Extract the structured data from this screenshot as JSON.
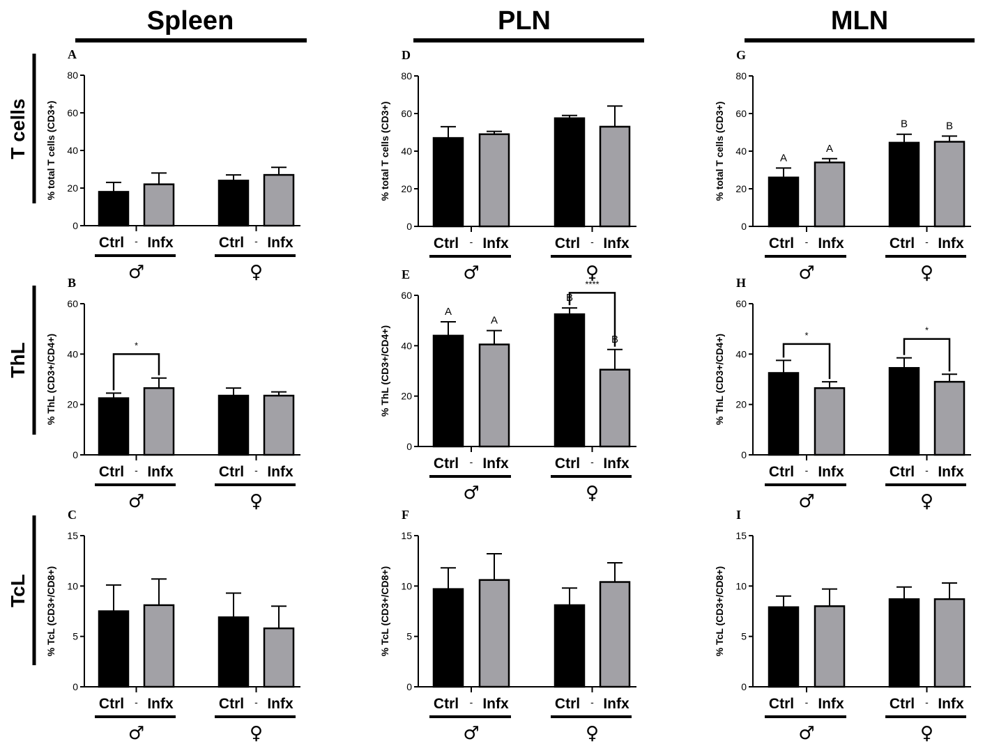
{
  "figure": {
    "column_titles": [
      "Spleen",
      "PLN",
      "MLN"
    ],
    "row_titles": [
      "T cells",
      "ThL",
      "TcL"
    ],
    "colors": {
      "ctrl": "#000000",
      "infx": "#a2a1a6"
    }
  },
  "chart_data": [
    {
      "panel": "A",
      "type": "bar",
      "ylabel": "% total T cells (CD3+)",
      "ylim": [
        0,
        80
      ],
      "yticks": [
        0,
        20,
        40,
        60,
        80
      ],
      "categories": [
        "Ctrl",
        "Infx",
        "Ctrl",
        "Infx"
      ],
      "sex_labels": [
        "♂",
        "♀"
      ],
      "values": [
        18,
        22,
        24,
        27
      ],
      "errors": [
        5,
        6,
        3,
        4
      ],
      "annotations": [],
      "significance": []
    },
    {
      "panel": "B",
      "type": "bar",
      "ylabel": "% ThL (CD3+/CD4+)",
      "ylim": [
        0,
        60
      ],
      "yticks": [
        0,
        20,
        40,
        60
      ],
      "categories": [
        "Ctrl",
        "Infx",
        "Ctrl",
        "Infx"
      ],
      "sex_labels": [
        "♂",
        "♀"
      ],
      "values": [
        22.5,
        26.5,
        23.5,
        23.5
      ],
      "errors": [
        2,
        4,
        3,
        1.5
      ],
      "annotations": [],
      "significance": [
        {
          "from": 0,
          "to": 1,
          "label": "*",
          "y": 40
        }
      ]
    },
    {
      "panel": "C",
      "type": "bar",
      "ylabel": "% TcL (CD3+/CD8+)",
      "ylim": [
        0,
        15
      ],
      "yticks": [
        0,
        5,
        10,
        15
      ],
      "categories": [
        "Ctrl",
        "Infx",
        "Ctrl",
        "Infx"
      ],
      "sex_labels": [
        "♂",
        "♀"
      ],
      "values": [
        7.5,
        8.1,
        6.9,
        5.8
      ],
      "errors": [
        2.6,
        2.6,
        2.4,
        2.2
      ],
      "annotations": [],
      "significance": []
    },
    {
      "panel": "D",
      "type": "bar",
      "ylabel": "% total T cells (CD3+)",
      "ylim": [
        0,
        80
      ],
      "yticks": [
        0,
        20,
        40,
        60,
        80
      ],
      "categories": [
        "Ctrl",
        "Infx",
        "Ctrl",
        "Infx"
      ],
      "sex_labels": [
        "♂",
        "♀"
      ],
      "values": [
        47,
        49,
        57.5,
        53
      ],
      "errors": [
        6,
        1.5,
        1.5,
        11
      ],
      "annotations": [],
      "significance": []
    },
    {
      "panel": "E",
      "type": "bar",
      "ylabel": "% ThL (CD3+/CD4+)",
      "ylim": [
        0,
        60
      ],
      "yticks": [
        0,
        20,
        40,
        60
      ],
      "categories": [
        "Ctrl",
        "Infx",
        "Ctrl",
        "Infx"
      ],
      "sex_labels": [
        "♂",
        "♀"
      ],
      "values": [
        44,
        40.5,
        52.5,
        30.5
      ],
      "errors": [
        5.5,
        5.5,
        2.5,
        8
      ],
      "annotations": [
        "A",
        "A",
        "B",
        "B"
      ],
      "significance": [
        {
          "from": 2,
          "to": 3,
          "label": "****",
          "y": 61
        }
      ]
    },
    {
      "panel": "F",
      "type": "bar",
      "ylabel": "% TcL (CD3+/CD8+)",
      "ylim": [
        0,
        15
      ],
      "yticks": [
        0,
        5,
        10,
        15
      ],
      "categories": [
        "Ctrl",
        "Infx",
        "Ctrl",
        "Infx"
      ],
      "sex_labels": [
        "♂",
        "♀"
      ],
      "values": [
        9.7,
        10.6,
        8.1,
        10.4
      ],
      "errors": [
        2.1,
        2.6,
        1.7,
        1.9
      ],
      "annotations": [],
      "significance": []
    },
    {
      "panel": "G",
      "type": "bar",
      "ylabel": "% total T cells (CD3+)",
      "ylim": [
        0,
        80
      ],
      "yticks": [
        0,
        20,
        40,
        60,
        80
      ],
      "categories": [
        "Ctrl",
        "Infx",
        "Ctrl",
        "Infx"
      ],
      "sex_labels": [
        "♂",
        "♀"
      ],
      "values": [
        26,
        34,
        44.5,
        45
      ],
      "errors": [
        5,
        2,
        4.5,
        3
      ],
      "annotations": [
        "A",
        "A",
        "B",
        "B"
      ],
      "significance": []
    },
    {
      "panel": "H",
      "type": "bar",
      "ylabel": "% ThL (CD3+/CD4+)",
      "ylim": [
        0,
        60
      ],
      "yticks": [
        0,
        20,
        40,
        60
      ],
      "categories": [
        "Ctrl",
        "Infx",
        "Ctrl",
        "Infx"
      ],
      "sex_labels": [
        "♂",
        "♀"
      ],
      "values": [
        32.5,
        26.5,
        34.5,
        29
      ],
      "errors": [
        5,
        2.5,
        4,
        3
      ],
      "annotations": [],
      "significance": [
        {
          "from": 0,
          "to": 1,
          "label": "*",
          "y": 44
        },
        {
          "from": 2,
          "to": 3,
          "label": "*",
          "y": 46
        }
      ]
    },
    {
      "panel": "I",
      "type": "bar",
      "ylabel": "% TcL (CD3+/CD8+)",
      "ylim": [
        0,
        15
      ],
      "yticks": [
        0,
        5,
        10,
        15
      ],
      "categories": [
        "Ctrl",
        "Infx",
        "Ctrl",
        "Infx"
      ],
      "sex_labels": [
        "♂",
        "♀"
      ],
      "values": [
        7.9,
        8,
        8.7,
        8.7
      ],
      "errors": [
        1.1,
        1.7,
        1.2,
        1.6
      ],
      "annotations": [],
      "significance": []
    }
  ]
}
